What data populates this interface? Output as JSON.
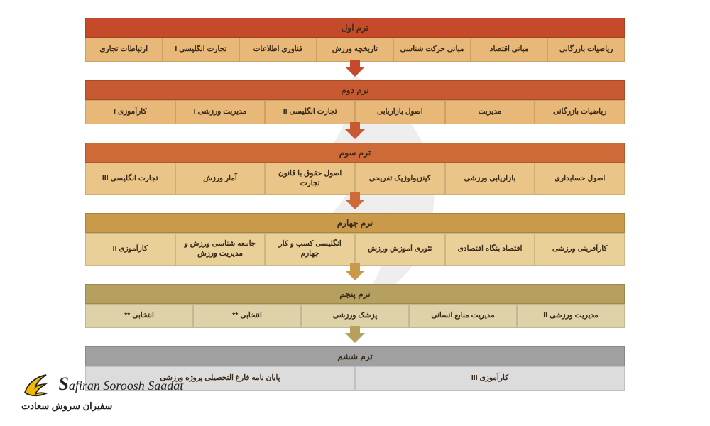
{
  "terms": [
    {
      "title": "ترم اول",
      "header_bg": "#c44a2a",
      "cell_bg": "#e8b878",
      "arrow_color": "#c44a2a",
      "courses": [
        "ریاضیات بازرگانی",
        "مبانی اقتصاد",
        "مبانی حرکت شناسی",
        "تاریخچه ورزش",
        "فناوری اطلاعات",
        "تجارت انگلیسی I",
        "ارتباطات تجاری"
      ]
    },
    {
      "title": "ترم دوم",
      "header_bg": "#c85a32",
      "cell_bg": "#e8b878",
      "arrow_color": "#c85a32",
      "courses": [
        "ریاضیات بازرگانی",
        "مدیریت",
        "اصول بازاریابی",
        "تجارت انگلیسی II",
        "مدیریت ورزشی I",
        "کارآموزی I"
      ]
    },
    {
      "title": "ترم سوم",
      "header_bg": "#ce6a38",
      "cell_bg": "#ebc588",
      "arrow_color": "#ce6a38",
      "courses": [
        "اصول حسابداری",
        "بازاریابی ورزشی",
        "کینزیولوژیک تفریحی",
        "اصول حقوق با قانون تجارت",
        "آمار ورزش",
        "تجارت انگلیسی III"
      ]
    },
    {
      "title": "ترم چهارم",
      "header_bg": "#c89a4a",
      "cell_bg": "#e8d098",
      "arrow_color": "#c89a4a",
      "courses": [
        "کارآفرینی ورزشی",
        "اقتصاد بنگاه اقتصادی",
        "تئوری آموزش ورزش",
        "انگلیسی کسب و کار چهارم",
        "جامعه شناسی ورزش و مدیریت ورزش",
        "کارآموزی II"
      ]
    },
    {
      "title": "ترم پنجم",
      "header_bg": "#b5a060",
      "cell_bg": "#ded2a8",
      "arrow_color": "#b5a060",
      "courses": [
        "مدیریت ورزشی II",
        "مدیریت منابع انسانی",
        "پزشک ورزشی",
        "انتخابی **",
        "انتخابی **"
      ]
    },
    {
      "title": "ترم ششم",
      "header_bg": "#a0a0a0",
      "cell_bg": "#dcdcdc",
      "arrow_color": "",
      "courses": [
        "کارآموزی III",
        "پایان نامه فارغ التحصیلی پروژه ورزشی"
      ]
    }
  ],
  "logo": {
    "line1_prefix": "S",
    "line1_rest": "afiran Soroosh Saadat",
    "line2": "سفیران سروش سعادت"
  }
}
